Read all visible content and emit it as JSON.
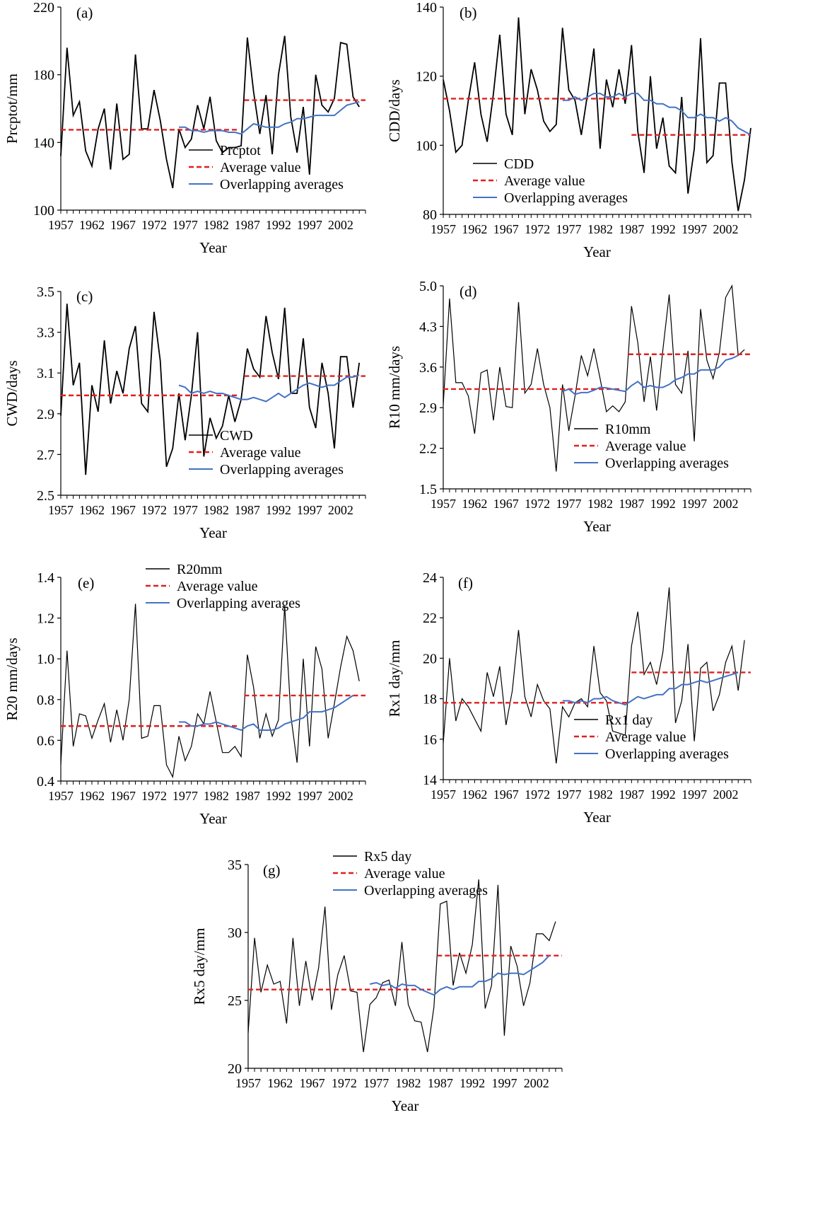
{
  "legend_labels": {
    "average": "Average value",
    "overlap": "Overlapping averages"
  },
  "colors": {
    "series": "#000000",
    "average": "#e02020",
    "overlap": "#4472c4"
  },
  "chart_data": [
    {
      "type": "line",
      "panel_label": "(a)",
      "ylabel": "Prcptot/mm",
      "xlabel": "Year",
      "ylim": [
        100,
        220
      ],
      "yticks": [
        "100",
        "140",
        "180",
        "220"
      ],
      "xticks": [
        "1957",
        "1962",
        "1967",
        "1972",
        "1977",
        "1982",
        "1987",
        "1992",
        "1997",
        "2002"
      ],
      "legend_position": "bottom-right",
      "series": [
        {
          "name": "Prcptot",
          "x_start": 1957,
          "values": [
            132,
            196,
            156,
            164,
            135,
            126,
            148,
            160,
            124,
            163,
            130,
            133,
            192,
            148,
            148,
            171,
            153,
            130,
            113,
            148,
            137,
            142,
            162,
            148,
            167,
            141,
            134,
            137,
            137,
            138,
            202,
            170,
            145,
            168,
            133,
            180,
            203,
            155,
            134,
            161,
            121,
            180,
            162,
            158,
            166,
            199,
            198,
            167,
            161
          ]
        },
        {
          "name": "Average value",
          "kind": "average",
          "segments": [
            [
              1957,
              1985.5,
              147.5
            ],
            [
              1986.5,
              2006,
              165
            ]
          ]
        },
        {
          "name": "Overlapping averages",
          "kind": "overlap",
          "x_start": 1976,
          "values": [
            149,
            149,
            147,
            147,
            146,
            147,
            147,
            147,
            146,
            146,
            145,
            148,
            151,
            150,
            149,
            149,
            149,
            151,
            152,
            154,
            154,
            155,
            156,
            156,
            156,
            156,
            159,
            162,
            163,
            164
          ]
        }
      ]
    },
    {
      "type": "line",
      "panel_label": "(b)",
      "ylabel": "CDD/days",
      "xlabel": "Year",
      "ylim": [
        80,
        140
      ],
      "yticks": [
        "80",
        "100",
        "120",
        "140"
      ],
      "xticks": [
        "1957",
        "1962",
        "1967",
        "1972",
        "1977",
        "1982",
        "1987",
        "1992",
        "1997",
        "2002"
      ],
      "legend_position": "bottom-left",
      "series": [
        {
          "name": "CDD",
          "x_start": 1957,
          "values": [
            119,
            110,
            98,
            100,
            113,
            124,
            109,
            101,
            115,
            132,
            109,
            103,
            137,
            109,
            122,
            116,
            107,
            104,
            106,
            134,
            116,
            113,
            103,
            115,
            128,
            99,
            119,
            111,
            122,
            112,
            129,
            104,
            92,
            120,
            99,
            108,
            94,
            92,
            114,
            86,
            99,
            131,
            95,
            97,
            118,
            118,
            95,
            81,
            90,
            105
          ]
        },
        {
          "name": "Average value",
          "kind": "average",
          "segments": [
            [
              1957,
              1986.5,
              113.5
            ],
            [
              1987,
              2006,
              103
            ]
          ]
        },
        {
          "name": "Overlapping averages",
          "kind": "overlap",
          "x_start": 1976,
          "values": [
            113,
            113,
            114,
            113,
            114,
            115,
            115,
            114,
            114,
            115,
            114,
            115,
            115,
            113,
            113,
            112,
            112,
            111,
            111,
            110,
            108,
            108,
            109,
            108,
            108,
            107,
            108,
            107,
            105,
            104,
            103
          ]
        }
      ]
    },
    {
      "type": "line",
      "panel_label": "(c)",
      "ylabel": "CWD/days",
      "xlabel": "Year",
      "ylim": [
        2.5,
        3.5
      ],
      "yticks": [
        "2.5",
        "2.7",
        "2.9",
        "3.1",
        "3.3",
        "3.5"
      ],
      "xticks": [
        "1957",
        "1962",
        "1967",
        "1972",
        "1977",
        "1982",
        "1987",
        "1992",
        "1997",
        "2002"
      ],
      "legend_position": "bottom-right",
      "series": [
        {
          "name": "CWD",
          "x_start": 1957,
          "values": [
            2.89,
            3.44,
            3.04,
            3.15,
            2.6,
            3.04,
            2.91,
            3.26,
            2.95,
            3.11,
            3.0,
            3.22,
            3.33,
            2.95,
            2.91,
            3.4,
            3.16,
            2.64,
            2.73,
            3.0,
            2.77,
            2.99,
            3.3,
            2.69,
            2.88,
            2.78,
            2.84,
            2.99,
            2.86,
            2.97,
            3.22,
            3.12,
            3.08,
            3.38,
            3.2,
            3.07,
            3.42,
            3.0,
            3.0,
            3.27,
            2.93,
            2.83,
            3.15,
            3.0,
            2.73,
            3.18,
            3.18,
            2.93,
            3.15
          ]
        },
        {
          "name": "Average value",
          "kind": "average",
          "segments": [
            [
              1957,
              1985.5,
              2.99
            ],
            [
              1986.5,
              2006,
              3.085
            ]
          ]
        },
        {
          "name": "Overlapping averages",
          "kind": "overlap",
          "x_start": 1976,
          "values": [
            3.04,
            3.03,
            3.0,
            3.01,
            3.0,
            3.01,
            3.0,
            3.0,
            2.99,
            2.98,
            2.97,
            2.97,
            2.98,
            2.97,
            2.96,
            2.98,
            3.0,
            2.98,
            3.0,
            3.02,
            3.04,
            3.05,
            3.04,
            3.03,
            3.04,
            3.04,
            3.06,
            3.08,
            3.08,
            3.09
          ]
        }
      ]
    },
    {
      "type": "line",
      "panel_label": "(d)",
      "ylabel": "R10 mm/days",
      "xlabel": "Year",
      "ylim": [
        1.5,
        5.0
      ],
      "yticks": [
        "1.5",
        "2.2",
        "2.9",
        "3.6",
        "4.3",
        "5.0"
      ],
      "xticks": [
        "1957",
        "1962",
        "1967",
        "1972",
        "1977",
        "1982",
        "1987",
        "1992",
        "1997",
        "2002"
      ],
      "legend_position": "bottom-right",
      "series": [
        {
          "name": "R10mm",
          "x_start": 1957,
          "values": [
            2.95,
            4.78,
            3.33,
            3.33,
            3.1,
            2.45,
            3.5,
            3.55,
            2.68,
            3.6,
            2.92,
            2.9,
            4.72,
            3.15,
            3.3,
            3.92,
            3.3,
            2.9,
            1.8,
            3.3,
            2.5,
            3.1,
            3.8,
            3.45,
            3.92,
            3.4,
            2.83,
            2.93,
            2.83,
            3.0,
            4.65,
            4.02,
            3.0,
            3.78,
            2.85,
            3.9,
            4.85,
            3.3,
            3.15,
            3.88,
            2.32,
            4.6,
            3.72,
            3.4,
            3.85,
            4.8,
            5.0,
            3.8,
            3.9
          ]
        },
        {
          "name": "Average value",
          "kind": "average",
          "segments": [
            [
              1957,
              1985.5,
              3.22
            ],
            [
              1986.5,
              2006,
              3.82
            ]
          ]
        },
        {
          "name": "Overlapping averages",
          "kind": "overlap",
          "x_start": 1976,
          "values": [
            3.18,
            3.22,
            3.13,
            3.16,
            3.16,
            3.2,
            3.25,
            3.24,
            3.22,
            3.2,
            3.18,
            3.28,
            3.35,
            3.25,
            3.28,
            3.25,
            3.25,
            3.3,
            3.38,
            3.42,
            3.48,
            3.48,
            3.55,
            3.55,
            3.55,
            3.6,
            3.72,
            3.75,
            3.8
          ]
        }
      ]
    },
    {
      "type": "line",
      "panel_label": "(e)",
      "ylabel": "R20 mm/days",
      "xlabel": "Year",
      "ylim": [
        0.4,
        1.4
      ],
      "yticks": [
        "0.4",
        "0.6",
        "0.8",
        "1.0",
        "1.2",
        "1.4"
      ],
      "xticks": [
        "1957",
        "1962",
        "1967",
        "1972",
        "1977",
        "1982",
        "1987",
        "1992",
        "1997",
        "2002"
      ],
      "legend_position": "top-center",
      "series": [
        {
          "name": "R20mm",
          "x_start": 1957,
          "values": [
            0.48,
            1.04,
            0.57,
            0.73,
            0.72,
            0.61,
            0.7,
            0.78,
            0.59,
            0.75,
            0.6,
            0.8,
            1.27,
            0.61,
            0.62,
            0.77,
            0.77,
            0.48,
            0.42,
            0.62,
            0.5,
            0.57,
            0.73,
            0.68,
            0.84,
            0.69,
            0.54,
            0.54,
            0.57,
            0.52,
            1.02,
            0.86,
            0.61,
            0.73,
            0.62,
            0.7,
            1.26,
            0.72,
            0.49,
            1.0,
            0.57,
            1.06,
            0.95,
            0.61,
            0.78,
            0.96,
            1.11,
            1.04,
            0.89
          ]
        },
        {
          "name": "Average value",
          "kind": "average",
          "segments": [
            [
              1957,
              1985.5,
              0.67
            ],
            [
              1986.5,
              2006,
              0.82
            ]
          ]
        },
        {
          "name": "Overlapping averages",
          "kind": "overlap",
          "x_start": 1976,
          "values": [
            0.69,
            0.69,
            0.67,
            0.67,
            0.68,
            0.68,
            0.69,
            0.68,
            0.67,
            0.66,
            0.65,
            0.67,
            0.68,
            0.65,
            0.65,
            0.65,
            0.66,
            0.68,
            0.69,
            0.7,
            0.71,
            0.74,
            0.74,
            0.74,
            0.75,
            0.76,
            0.78,
            0.8,
            0.82
          ]
        }
      ]
    },
    {
      "type": "line",
      "panel_label": "(f)",
      "ylabel": "Rx1 day/mm",
      "xlabel": "Year",
      "ylim": [
        14,
        24
      ],
      "yticks": [
        "14",
        "16",
        "18",
        "20",
        "22",
        "24"
      ],
      "xticks": [
        "1957",
        "1962",
        "1967",
        "1972",
        "1977",
        "1982",
        "1987",
        "1992",
        "1997",
        "2002"
      ],
      "legend_position": "bottom-right",
      "series": [
        {
          "name": "Rx1 day",
          "x_start": 1957,
          "values": [
            15.8,
            20.0,
            16.9,
            18.0,
            17.6,
            17.0,
            16.4,
            19.3,
            18.1,
            19.6,
            16.7,
            18.4,
            21.4,
            18.1,
            17.1,
            18.7,
            17.9,
            17.5,
            14.8,
            17.6,
            17.1,
            17.8,
            18.0,
            17.6,
            20.6,
            18.3,
            17.9,
            16.4,
            16.3,
            16.2,
            20.6,
            22.3,
            19.2,
            19.8,
            18.7,
            20.3,
            23.5,
            16.8,
            17.9,
            20.7,
            15.9,
            19.5,
            19.8,
            17.4,
            18.2,
            19.8,
            20.6,
            18.4,
            20.9
          ]
        },
        {
          "name": "Average value",
          "kind": "average",
          "segments": [
            [
              1957,
              1986.5,
              17.8
            ],
            [
              1987,
              2006,
              19.3
            ]
          ]
        },
        {
          "name": "Overlapping averages",
          "kind": "overlap",
          "x_start": 1976,
          "values": [
            17.9,
            17.9,
            17.8,
            17.9,
            17.8,
            18.0,
            18.0,
            18.1,
            17.9,
            17.8,
            17.7,
            17.9,
            18.1,
            18.0,
            18.1,
            18.2,
            18.2,
            18.5,
            18.5,
            18.7,
            18.7,
            18.8,
            18.9,
            18.8,
            18.9,
            19.0,
            19.1,
            19.2,
            19.3
          ]
        }
      ]
    },
    {
      "type": "line",
      "panel_label": "(g)",
      "ylabel": "Rx5 day/mm",
      "xlabel": "Year",
      "ylim": [
        20,
        35
      ],
      "yticks": [
        "20",
        "25",
        "30",
        "35"
      ],
      "xticks": [
        "1957",
        "1962",
        "1967",
        "1972",
        "1977",
        "1982",
        "1987",
        "1992",
        "1997",
        "2002"
      ],
      "legend_position": "top-center",
      "series": [
        {
          "name": "Rx5 day",
          "x_start": 1957,
          "values": [
            22.6,
            29.6,
            25.6,
            27.6,
            26.2,
            26.4,
            23.3,
            29.6,
            24.6,
            27.9,
            25.0,
            27.4,
            31.9,
            24.3,
            26.9,
            28.3,
            25.7,
            25.6,
            21.2,
            24.7,
            25.2,
            26.3,
            26.5,
            24.6,
            29.3,
            24.7,
            23.5,
            23.4,
            21.2,
            24.5,
            32.1,
            32.3,
            26.1,
            28.5,
            27.0,
            29.1,
            33.9,
            24.4,
            26.1,
            33.5,
            22.4,
            29.0,
            27.5,
            24.6,
            26.3,
            29.9,
            29.9,
            29.4,
            30.8
          ]
        },
        {
          "name": "Average value",
          "kind": "average",
          "segments": [
            [
              1957,
              1985.5,
              25.8
            ],
            [
              1986.5,
              2006,
              28.3
            ]
          ]
        },
        {
          "name": "Overlapping averages",
          "kind": "overlap",
          "x_start": 1976,
          "values": [
            26.2,
            26.3,
            26.1,
            26.2,
            25.9,
            26.2,
            26.1,
            26.1,
            25.8,
            25.6,
            25.4,
            25.8,
            26.0,
            25.8,
            26.0,
            26.0,
            26.0,
            26.4,
            26.4,
            26.6,
            27.0,
            26.9,
            27.0,
            27.0,
            26.9,
            27.2,
            27.5,
            27.8,
            28.3
          ]
        }
      ]
    }
  ]
}
